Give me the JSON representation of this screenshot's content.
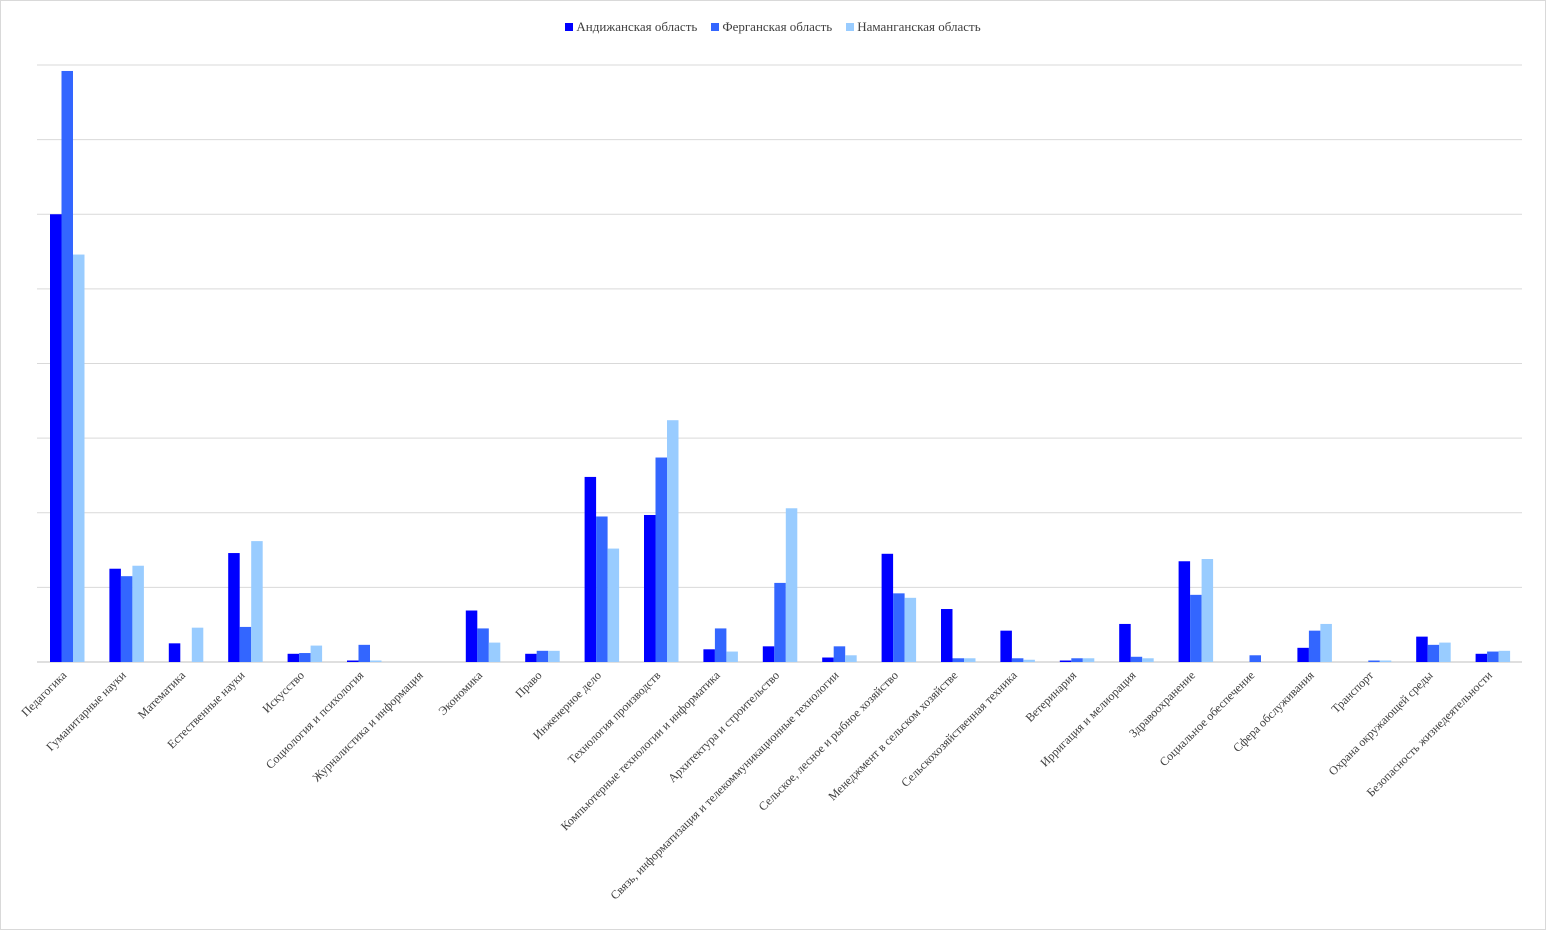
{
  "chart_data": {
    "type": "bar",
    "title": "",
    "xlabel": "",
    "ylabel": "",
    "ylim": [
      0,
      8
    ],
    "grid": true,
    "legend_position": "top-center",
    "categories": [
      "Педагогика",
      "Гуманитарные науки",
      "Математика",
      "Естественные науки",
      "Искусство",
      "Социология и психология",
      "Журналистика и информация",
      "Экономика",
      "Право",
      "Инженерное дело",
      "Технология производств",
      "Компьютерные технологии и информатика",
      "Архитектура и строительство",
      "Связь, информатизация и телекоммуникационные технологии",
      "Сельское, лесное и рыбное хозяйство",
      "Менеджмент в сельском хозяйстве",
      "Сельскохозяйственная техника",
      "Ветеринария",
      "Ирригация и мелиорация",
      "Здравоохранение",
      "Социальное обеспечение",
      "Сфера обслуживания",
      "Транспорт",
      "Охрана окружающей среды",
      "Безопасность жизнедеятельности"
    ],
    "series": [
      {
        "name": "Андижанская область",
        "color": "#0000ff",
        "values": [
          6.0,
          1.25,
          0.25,
          1.46,
          0.11,
          0.02,
          0.0,
          0.69,
          0.11,
          2.48,
          1.97,
          0.17,
          0.21,
          0.06,
          1.45,
          0.71,
          0.42,
          0.02,
          0.51,
          1.35,
          0.0,
          0.19,
          0.0,
          0.34,
          0.11
        ]
      },
      {
        "name": "Ферганская область",
        "color": "#3366ff",
        "values": [
          7.92,
          1.15,
          0.0,
          0.47,
          0.12,
          0.23,
          0.0,
          0.45,
          0.15,
          1.95,
          2.74,
          0.45,
          1.06,
          0.21,
          0.92,
          0.05,
          0.05,
          0.05,
          0.07,
          0.9,
          0.09,
          0.42,
          0.02,
          0.23,
          0.14
        ]
      },
      {
        "name": "Наманганская область",
        "color": "#99ccff",
        "values": [
          5.46,
          1.29,
          0.46,
          1.62,
          0.22,
          0.02,
          0.0,
          0.26,
          0.15,
          1.52,
          3.24,
          0.14,
          2.06,
          0.09,
          0.86,
          0.05,
          0.03,
          0.05,
          0.05,
          1.38,
          0.0,
          0.51,
          0.02,
          0.26,
          0.15
        ]
      }
    ]
  }
}
